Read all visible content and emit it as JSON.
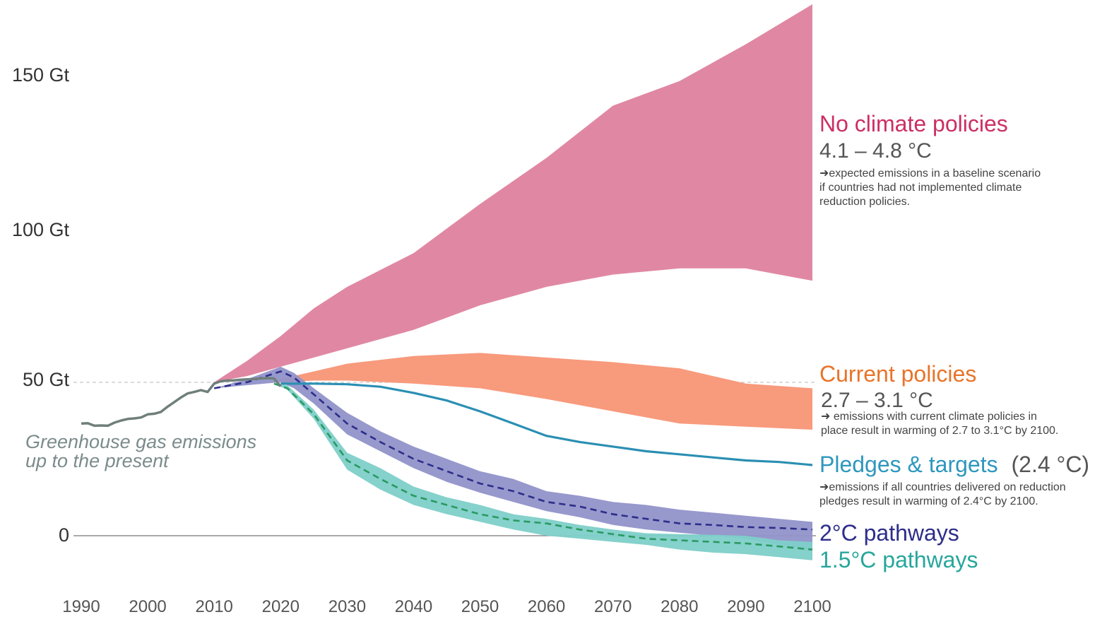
{
  "chart_data": {
    "type": "area",
    "title": "",
    "xlabel": "",
    "ylabel": "",
    "xlim": [
      1990,
      2100
    ],
    "ylim": [
      0,
      150
    ],
    "x_ticks": [
      "1990",
      "2000",
      "2010",
      "2020",
      "2030",
      "2040",
      "2050",
      "2060",
      "2070",
      "2080",
      "2090",
      "2100"
    ],
    "y_ticks": [
      {
        "value": 0,
        "label": "0"
      },
      {
        "value": 50,
        "label": "50 Gt"
      },
      {
        "value": 100,
        "label": "100 Gt"
      },
      {
        "value": 150,
        "label": "150 Gt"
      }
    ],
    "reference_line": {
      "value": 50
    },
    "history": {
      "label_lines": [
        "Greenhouse gas emissions",
        "up to the present"
      ],
      "color": "#6f7f7b",
      "x": [
        1990,
        1991,
        1992,
        1993,
        1994,
        1995,
        1996,
        1997,
        1998,
        1999,
        2000,
        2001,
        2002,
        2003,
        2004,
        2005,
        2006,
        2007,
        2008,
        2009,
        2010,
        2011,
        2012,
        2013,
        2014,
        2015,
        2016,
        2017,
        2018,
        2019,
        2020
      ],
      "y": [
        36.5,
        36.6,
        35.8,
        35.9,
        35.8,
        36.8,
        37.5,
        38.0,
        38.2,
        38.5,
        39.5,
        39.7,
        40.3,
        42.0,
        43.5,
        45.0,
        46.3,
        46.8,
        47.4,
        46.8,
        49.5,
        50.3,
        50.5,
        50.6,
        50.8,
        50.9,
        51.0,
        51.2,
        51.3,
        51.2,
        48.6
      ]
    },
    "series": [
      {
        "name": "No climate policies",
        "kind": "band",
        "color": "#e088a3",
        "label_color": "#cc2f63",
        "temp": "4.1 – 4.8 °C",
        "note_lines": [
          "➜expected emissions in a baseline scenario",
          "if countries had not implemented climate",
          "reduction policies."
        ],
        "x": [
          2010,
          2015,
          2020,
          2025,
          2030,
          2040,
          2050,
          2060,
          2070,
          2080,
          2090,
          2100
        ],
        "low": [
          50,
          52,
          55,
          58,
          61,
          67,
          75,
          81,
          85,
          87,
          87,
          83
        ],
        "high": [
          50,
          57,
          65,
          74,
          81,
          92,
          108,
          123,
          140,
          148,
          160,
          173
        ]
      },
      {
        "name": "Current policies",
        "kind": "band",
        "color": "#f89a7c",
        "label_color": "#e8742a",
        "temp": "2.7 – 3.1 °C",
        "note_lines": [
          "➜ emissions with current climate policies in",
          "place result in warming of 2.7 to 3.1°C by 2100."
        ],
        "x": [
          2020,
          2025,
          2030,
          2040,
          2050,
          2060,
          2070,
          2080,
          2090,
          2100
        ],
        "low": [
          50,
          50.5,
          50.5,
          49.5,
          48,
          44.5,
          40.5,
          36.5,
          35.5,
          34.5
        ],
        "high": [
          51,
          53.5,
          56,
          58.5,
          59.5,
          58,
          56.5,
          54.5,
          49.5,
          48
        ]
      },
      {
        "name": "Pledges & targets",
        "kind": "line",
        "color": "#2b8fb3",
        "label_color": "#2e97bd",
        "temp": "(2.4 °C)",
        "note_lines": [
          "➜emissions if all countries delivered on reduction",
          "pledges result in warming of 2.4°C by 2100."
        ],
        "x": [
          2020,
          2025,
          2030,
          2035,
          2040,
          2045,
          2050,
          2055,
          2060,
          2065,
          2070,
          2075,
          2080,
          2085,
          2090,
          2095,
          2100
        ],
        "y": [
          49.5,
          49.5,
          49.3,
          48.5,
          46.5,
          44.0,
          40.5,
          36.5,
          32.5,
          30.5,
          29,
          27.5,
          26.5,
          25.5,
          24.5,
          24.0,
          23.0
        ]
      },
      {
        "name": "2°C pathways",
        "kind": "band",
        "color": "#9192c9",
        "line_color": "#2d2e8a",
        "label_color": "#2d2d8b",
        "x": [
          2010,
          2015,
          2020,
          2022,
          2025,
          2030,
          2035,
          2040,
          2045,
          2050,
          2055,
          2060,
          2065,
          2070,
          2075,
          2080,
          2085,
          2090,
          2095,
          2100
        ],
        "low": [
          48,
          49,
          50,
          48,
          43,
          33,
          27.5,
          22,
          17.5,
          14,
          11,
          8,
          6,
          3.5,
          2,
          1,
          0,
          -1,
          -3,
          -5
        ],
        "high": [
          48,
          51,
          55,
          53,
          48,
          40,
          34,
          29,
          25,
          21,
          18.5,
          14.5,
          13,
          11,
          10,
          8.5,
          7.5,
          6.5,
          5.5,
          4.5
        ],
        "median": [
          48,
          50,
          53.5,
          51.5,
          46,
          36.5,
          30.5,
          25,
          21,
          17,
          14.5,
          11,
          9.5,
          7,
          5.5,
          4,
          3.5,
          2.8,
          2.5,
          2
        ]
      },
      {
        "name": "1.5°C pathways",
        "kind": "band",
        "color": "#7ecfc9",
        "line_color": "#2a9a61",
        "label_color": "#27a69c",
        "x": [
          2019,
          2021,
          2025,
          2030,
          2035,
          2040,
          2045,
          2050,
          2055,
          2060,
          2065,
          2070,
          2075,
          2080,
          2085,
          2090,
          2095,
          2100
        ],
        "low": [
          49.5,
          47.5,
          38,
          21.5,
          15,
          10,
          7,
          4.5,
          2,
          0,
          -1,
          -2,
          -3,
          -4.5,
          -5.5,
          -6,
          -7,
          -8
        ],
        "high": [
          49.5,
          49,
          41,
          27,
          22,
          16,
          12.5,
          10,
          7,
          5.5,
          3.5,
          2,
          0.8,
          0.5,
          0.3,
          0,
          -1.5,
          -2
        ],
        "median": [
          49.5,
          48,
          39.5,
          24.5,
          18.5,
          13,
          10,
          7,
          5,
          4,
          2,
          0.5,
          -1,
          -1.5,
          -2,
          -2.5,
          -3.5,
          -4.5
        ]
      }
    ]
  }
}
